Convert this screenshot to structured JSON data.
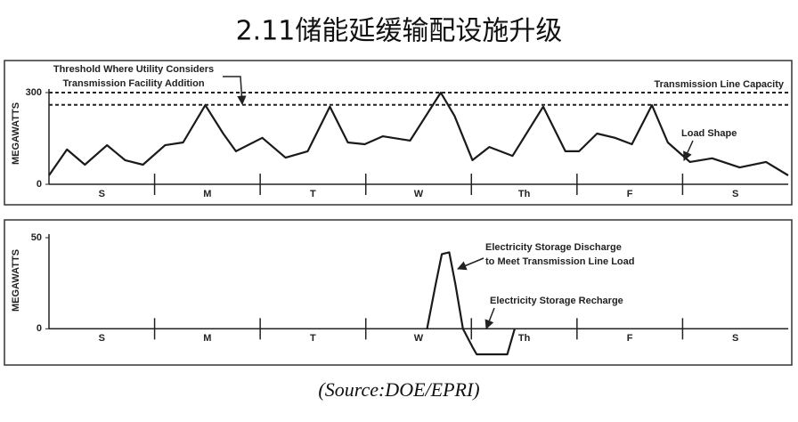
{
  "title": "2.11储能延缓输配设施升级",
  "source": "(Source:DOE/EPRI)",
  "chart_data": [
    {
      "type": "line",
      "ylabel": "MEGAWATTS",
      "categories": [
        "S",
        "M",
        "T",
        "W",
        "Th",
        "F",
        "S"
      ],
      "xlim": [
        0,
        7
      ],
      "ylim": [
        0,
        300
      ],
      "yticks": [
        0,
        300
      ],
      "hlines": [
        {
          "value": 300,
          "label": "Transmission Line Capacity"
        },
        {
          "value": 260,
          "label": [
            "Threshold Where Utility Considers",
            "Transmission Facility Addition"
          ]
        }
      ],
      "series": [
        {
          "name": "Load Shape",
          "color": "#1a1a1a",
          "x": [
            0,
            0.17,
            0.34,
            0.55,
            0.72,
            0.89,
            1.1,
            1.27,
            1.48,
            1.65,
            1.77,
            2.02,
            2.24,
            2.45,
            2.66,
            2.83,
            2.99,
            3.16,
            3.42,
            3.71,
            3.84,
            4.01,
            4.17,
            4.39,
            4.68,
            4.89,
            5.02,
            5.19,
            5.36,
            5.52,
            5.71,
            5.86,
            6.07,
            6.28,
            6.54,
            6.79,
            7
          ],
          "values": [
            29,
            114,
            64,
            128,
            79,
            64,
            128,
            137,
            259,
            166,
            108,
            152,
            87,
            108,
            254,
            137,
            131,
            157,
            143,
            300,
            224,
            79,
            122,
            93,
            254,
            108,
            108,
            166,
            152,
            131,
            259,
            137,
            73,
            85,
            55,
            73,
            29
          ]
        }
      ]
    },
    {
      "type": "line",
      "ylabel": "MEGAWATTS",
      "categories": [
        "S",
        "M",
        "T",
        "W",
        "Th",
        "F",
        "S"
      ],
      "xlim": [
        0,
        7
      ],
      "ylim": [
        -15,
        50
      ],
      "yticks": [
        0,
        50
      ],
      "annotations": [
        [
          "Electricity Storage Discharge",
          "to Meet Transmission Line Load"
        ],
        [
          "Electricity Storage Recharge"
        ]
      ],
      "series": [
        {
          "color": "#1a1a1a",
          "x": [
            3.58,
            3.66,
            3.72,
            3.79,
            3.85,
            3.92,
            4.01,
            4.05,
            4.34,
            4.41
          ],
          "values": [
            0,
            24,
            41,
            42,
            24,
            0,
            -10,
            -14,
            -14,
            0
          ]
        }
      ]
    }
  ]
}
